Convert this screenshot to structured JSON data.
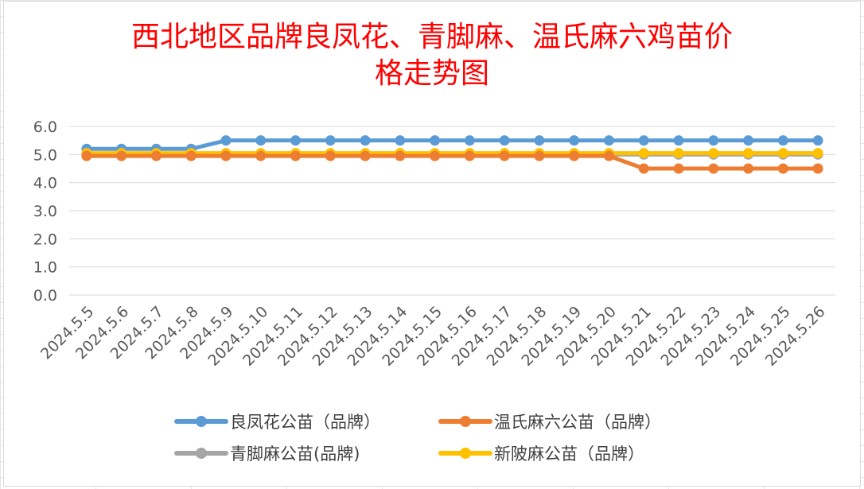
{
  "chart_data": {
    "type": "line",
    "title_lines": [
      "西北地区品牌良凤花、青脚麻、温氏麻六鸡苗价",
      "格走势图"
    ],
    "xlabel": "",
    "ylabel": "",
    "ylim": [
      0,
      6
    ],
    "yticks": [
      "0.0",
      "1.0",
      "2.0",
      "3.0",
      "4.0",
      "5.0",
      "6.0"
    ],
    "grid": true,
    "legend_position": "bottom",
    "categories": [
      "2024.5.5",
      "2024.5.6",
      "2024.5.7",
      "2024.5.8",
      "2024.5.9",
      "2024.5.10",
      "2024.5.11",
      "2024.5.12",
      "2024.5.13",
      "2024.5.14",
      "2024.5.15",
      "2024.5.16",
      "2024.5.17",
      "2024.5.18",
      "2024.5.19",
      "2024.5.20",
      "2024.5.21",
      "2024.5.22",
      "2024.5.23",
      "2024.5.24",
      "2024.5.25",
      "2024.5.26"
    ],
    "series": [
      {
        "name": "良凤花公苗（品牌）",
        "color": "#5b9bd5",
        "values": [
          5.2,
          5.2,
          5.2,
          5.2,
          5.5,
          5.5,
          5.5,
          5.5,
          5.5,
          5.5,
          5.5,
          5.5,
          5.5,
          5.5,
          5.5,
          5.5,
          5.5,
          5.5,
          5.5,
          5.5,
          5.5,
          5.5
        ]
      },
      {
        "name": "青脚麻公苗(品牌)",
        "color": "#a5a5a5",
        "values": [
          5.0,
          5.0,
          5.0,
          5.0,
          5.0,
          5.0,
          5.0,
          5.0,
          5.0,
          5.0,
          5.0,
          5.0,
          5.0,
          5.0,
          5.0,
          5.0,
          5.0,
          5.0,
          5.0,
          5.0,
          5.0,
          5.0
        ]
      },
      {
        "name": "新陂麻公苗（品牌）",
        "color": "#ffc000",
        "values": [
          5.05,
          5.05,
          5.05,
          5.05,
          5.05,
          5.05,
          5.05,
          5.05,
          5.05,
          5.05,
          5.05,
          5.05,
          5.05,
          5.05,
          5.05,
          5.05,
          5.05,
          5.05,
          5.05,
          5.05,
          5.05,
          5.05
        ]
      },
      {
        "name": "温氏麻六公苗（品牌）",
        "color": "#ed7d31",
        "values": [
          4.95,
          4.95,
          4.95,
          4.95,
          4.95,
          4.95,
          4.95,
          4.95,
          4.95,
          4.95,
          4.95,
          4.95,
          4.95,
          4.95,
          4.95,
          4.95,
          4.5,
          4.5,
          4.5,
          4.5,
          4.5,
          4.5
        ]
      }
    ],
    "legend_order": [
      0,
      3,
      1,
      2
    ]
  }
}
